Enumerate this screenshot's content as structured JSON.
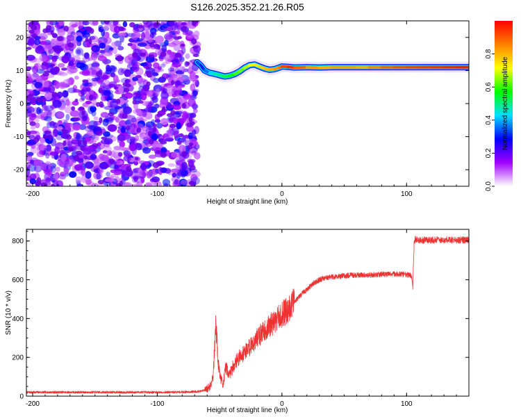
{
  "figure": {
    "title": "S126.2025.352.21.26.R05"
  },
  "chart_data": [
    {
      "type": "heatmap",
      "xlabel": "Height of straight line (km)",
      "ylabel": "Frequency (Hz)",
      "xlim": [
        -205,
        150
      ],
      "ylim": [
        -25,
        25
      ],
      "xticks": [
        -200,
        -100,
        0,
        100
      ],
      "yticks": [
        -20,
        -10,
        0,
        10,
        20
      ],
      "noise_region_x": [
        -205,
        -68
      ],
      "carrier_line": {
        "x": [
          -68,
          -65,
          -62,
          -58,
          -54,
          -50,
          -46,
          -42,
          -38,
          -34,
          -30,
          -26,
          -22,
          -18,
          -14,
          -10,
          -6,
          -2,
          0,
          5,
          10,
          20,
          30,
          40,
          50,
          60,
          70,
          80,
          90,
          100,
          110,
          120,
          130,
          140,
          150
        ],
        "y": [
          12.5,
          11.5,
          10.0,
          9.3,
          9.0,
          8.6,
          8.2,
          8.4,
          8.9,
          9.7,
          10.8,
          11.6,
          11.8,
          11.2,
          10.6,
          10.2,
          10.4,
          10.9,
          11.2,
          11.1,
          10.9,
          11.0,
          10.9,
          11.0,
          11.0,
          11.0,
          11.0,
          11.0,
          11.0,
          11.0,
          11.0,
          11.0,
          11.0,
          11.0,
          11.0
        ],
        "amplitude": [
          0.35,
          0.3,
          0.3,
          0.4,
          0.45,
          0.5,
          0.5,
          0.55,
          0.6,
          0.62,
          0.65,
          0.7,
          0.72,
          0.75,
          0.78,
          0.8,
          0.82,
          0.85,
          0.9,
          0.95,
          0.95,
          0.85,
          0.82,
          0.8,
          0.85,
          0.8,
          0.82,
          0.88,
          0.9,
          0.92,
          0.93,
          0.94,
          0.95,
          0.96,
          0.97
        ]
      },
      "colorbar": {
        "label": "Normalized spectral amplitude",
        "range": [
          0,
          1
        ],
        "ticks": [
          "0.0",
          "0.2",
          "0.4",
          "0.6",
          "0.8"
        ],
        "colors": [
          "#ffffff",
          "#a000ff",
          "#0000ff",
          "#00e0ff",
          "#00ff00",
          "#ffff00",
          "#ff8000",
          "#ff0000"
        ]
      }
    },
    {
      "type": "line",
      "xlabel": "Height of straight line (km)",
      "ylabel": "SNR (10 * v/v)",
      "xlim": [
        -205,
        150
      ],
      "ylim": [
        0,
        860
      ],
      "xticks": [
        -200,
        -100,
        0,
        100
      ],
      "yticks": [
        0,
        200,
        400,
        600,
        800
      ],
      "color": "#ee3333",
      "series": [
        {
          "x": [
            -205,
            -190,
            -170,
            -150,
            -130,
            -110,
            -90,
            -75,
            -65,
            -60,
            -57,
            -55,
            -53,
            -51,
            -49,
            -47,
            -45,
            -42,
            -38,
            -34,
            -30,
            -25,
            -20,
            -15,
            -10,
            -5,
            0,
            5,
            10,
            15,
            20,
            25,
            30,
            35,
            40,
            50,
            60,
            70,
            80,
            90,
            100,
            104,
            105,
            106,
            107,
            110,
            120,
            130,
            140,
            150
          ],
          "y": [
            20,
            20,
            20,
            20,
            20,
            20,
            20,
            22,
            25,
            35,
            60,
            120,
            380,
            160,
            90,
            60,
            150,
            110,
            170,
            200,
            230,
            260,
            300,
            330,
            360,
            390,
            420,
            450,
            490,
            520,
            550,
            580,
            600,
            610,
            615,
            620,
            625,
            625,
            628,
            630,
            628,
            620,
            560,
            780,
            810,
            805,
            805,
            805,
            805,
            805
          ]
        }
      ]
    }
  ]
}
